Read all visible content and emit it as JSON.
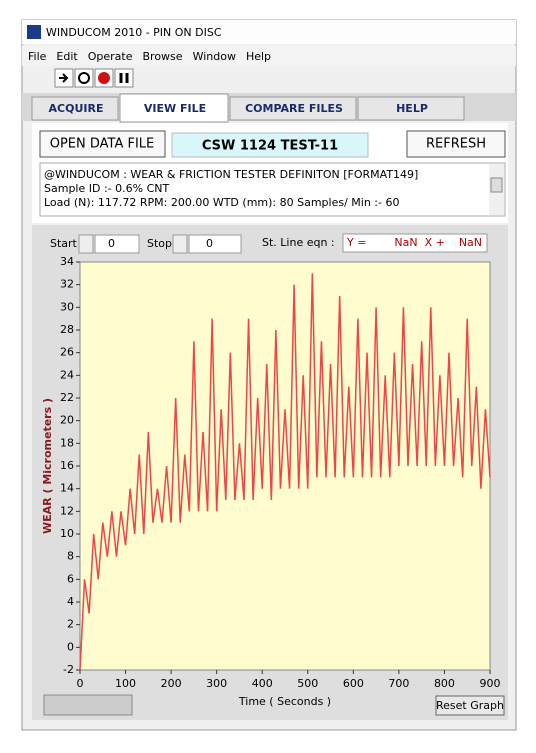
{
  "window": {
    "title": "WINDUCOM 2010 - PIN ON DISC"
  },
  "menu": [
    "File",
    "Edit",
    "Operate",
    "Browse",
    "Window",
    "Help"
  ],
  "tabs": [
    "ACQUIRE",
    "VIEW FILE",
    "COMPARE FILES",
    "HELP"
  ],
  "buttons": {
    "open": "OPEN DATA FILE",
    "refresh": "REFRESH",
    "reset": "Reset Graph"
  },
  "file_name": "CSW 1124 TEST-11",
  "info_lines": [
    "@WINDUCOM : WEAR & FRICTION TESTER DEFINITON [FORMAT149]",
    "Sample ID :- 0.6% CNT",
    "Load (N):   117.72 RPM:   200.00 WTD (mm):    80    Samples/ Min :-    60"
  ],
  "controls": {
    "start_label": "Start",
    "start_value": "0",
    "stop_label": "Stop",
    "stop_value": "0",
    "line_eqn_label": "St. Line eqn :",
    "line_eqn": "Y =        NaN  X +    NaN"
  },
  "chart_data": {
    "type": "line",
    "xlabel": "Time ( Seconds )",
    "ylabel": "WEAR ( Micrometers )",
    "color": "#f04545",
    "x": [
      0,
      10,
      20,
      30,
      40,
      50,
      60,
      70,
      80,
      90,
      100,
      110,
      120,
      130,
      140,
      150,
      160,
      170,
      180,
      190,
      200,
      210,
      220,
      230,
      240,
      250,
      260,
      270,
      280,
      290,
      300,
      310,
      320,
      330,
      340,
      350,
      360,
      370,
      380,
      390,
      400,
      410,
      420,
      430,
      440,
      450,
      460,
      470,
      480,
      490,
      500,
      510,
      520,
      530,
      540,
      550,
      560,
      570,
      580,
      590,
      600,
      610,
      620,
      630,
      640,
      650,
      660,
      670,
      680,
      690,
      700,
      710,
      720,
      730,
      740,
      750,
      760,
      770,
      780,
      790,
      800,
      810,
      820,
      830,
      840,
      850,
      860,
      870,
      880,
      890,
      900
    ],
    "values": [
      -2,
      6,
      3,
      10,
      6,
      11,
      8,
      12,
      8,
      12,
      9,
      14,
      10,
      17,
      10,
      19,
      11,
      14,
      11,
      16,
      11,
      22,
      11,
      17,
      12,
      27,
      12,
      19,
      12,
      29,
      12,
      21,
      13,
      26,
      13,
      18,
      13,
      29,
      13,
      22,
      14,
      25,
      13,
      28,
      14,
      21,
      14,
      32,
      14,
      24,
      14,
      33,
      15,
      27,
      15,
      25,
      15,
      31,
      15,
      23,
      15,
      29,
      15,
      26,
      15,
      30,
      15,
      24,
      15,
      26,
      16,
      30,
      16,
      25,
      16,
      27,
      16,
      30,
      16,
      24,
      16,
      26,
      16,
      22,
      15,
      29,
      16,
      23,
      14,
      21,
      15
    ],
    "xlim": [
      0,
      900
    ],
    "xticks": [
      0,
      100,
      200,
      300,
      400,
      500,
      600,
      700,
      800,
      900
    ],
    "ylim": [
      -2,
      34
    ],
    "yticks": [
      -2,
      0,
      2,
      4,
      6,
      8,
      10,
      12,
      14,
      16,
      18,
      20,
      22,
      24,
      26,
      28,
      30,
      32,
      34
    ],
    "grid": false
  }
}
